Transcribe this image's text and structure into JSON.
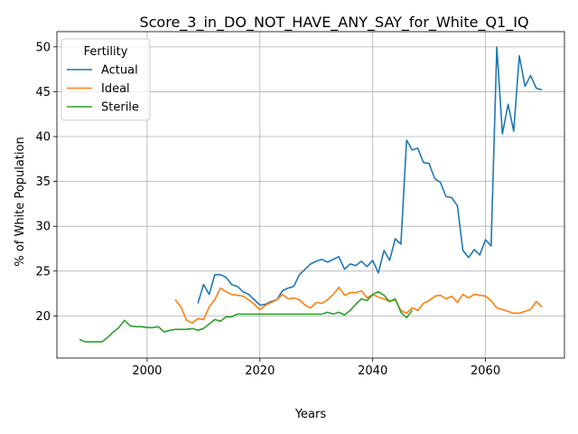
{
  "chart_data": {
    "type": "line",
    "title": "Score_3_in_DO_NOT_HAVE_ANY_SAY_for_White_Q1_IQ",
    "xlabel": "Years",
    "ylabel": "% of White Population",
    "xlim": [
      1984,
      2074
    ],
    "ylim": [
      15.3,
      51.7
    ],
    "xticks": [
      2000,
      2020,
      2040,
      2060
    ],
    "yticks": [
      20,
      25,
      30,
      35,
      40,
      45,
      50
    ],
    "grid": true,
    "legend": {
      "title": "Fertility",
      "placement": "top-left"
    },
    "series": [
      {
        "name": "Actual",
        "color": "#1f77b4",
        "x": [
          2009,
          2010,
          2011,
          2012,
          2013,
          2014,
          2015,
          2016,
          2017,
          2018,
          2019,
          2020,
          2021,
          2022,
          2023,
          2024,
          2025,
          2026,
          2027,
          2028,
          2029,
          2030,
          2031,
          2032,
          2033,
          2034,
          2035,
          2036,
          2037,
          2038,
          2039,
          2040,
          2041,
          2042,
          2043,
          2044,
          2045,
          2046,
          2047,
          2048,
          2049,
          2050,
          2051,
          2052,
          2053,
          2054,
          2055,
          2056,
          2057,
          2058,
          2059,
          2060,
          2061,
          2062,
          2063,
          2064,
          2065,
          2066,
          2067,
          2068,
          2069,
          2070
        ],
        "y": [
          21.4,
          23.5,
          22.4,
          24.6,
          24.6,
          24.3,
          23.5,
          23.3,
          22.7,
          22.4,
          21.8,
          21.2,
          21.3,
          21.6,
          21.8,
          22.8,
          23.1,
          23.3,
          24.6,
          25.2,
          25.8,
          26.1,
          26.3,
          26.0,
          26.3,
          26.6,
          25.2,
          25.8,
          25.6,
          26.1,
          25.5,
          26.2,
          24.8,
          27.3,
          26.2,
          28.6,
          28.0,
          39.6,
          38.5,
          38.7,
          37.1,
          37.0,
          35.3,
          34.9,
          33.3,
          33.2,
          32.3,
          27.3,
          26.5,
          27.4,
          26.8,
          28.5,
          27.8,
          50.0,
          40.3,
          43.6,
          40.6,
          49.0,
          45.6,
          46.8,
          45.4,
          45.2
        ]
      },
      {
        "name": "Ideal",
        "color": "#ff7f0e",
        "x": [
          2005,
          2006,
          2007,
          2008,
          2009,
          2010,
          2011,
          2012,
          2013,
          2014,
          2015,
          2016,
          2017,
          2018,
          2019,
          2020,
          2021,
          2022,
          2023,
          2024,
          2025,
          2026,
          2027,
          2028,
          2029,
          2030,
          2031,
          2032,
          2033,
          2034,
          2035,
          2036,
          2037,
          2038,
          2039,
          2040,
          2041,
          2042,
          2043,
          2044,
          2045,
          2046,
          2047,
          2048,
          2049,
          2050,
          2051,
          2052,
          2053,
          2054,
          2055,
          2056,
          2057,
          2058,
          2059,
          2060,
          2061,
          2062,
          2063,
          2064,
          2065,
          2066,
          2067,
          2068,
          2069,
          2070
        ],
        "y": [
          21.8,
          21.0,
          19.5,
          19.2,
          19.7,
          19.6,
          21.0,
          21.8,
          23.1,
          22.7,
          22.4,
          22.3,
          22.2,
          21.8,
          21.3,
          20.7,
          21.2,
          21.5,
          21.8,
          22.4,
          21.9,
          22.0,
          21.8,
          21.2,
          20.9,
          21.5,
          21.4,
          21.8,
          22.4,
          23.2,
          22.3,
          22.6,
          22.6,
          22.8,
          22.0,
          22.4,
          22.1,
          21.9,
          21.6,
          21.8,
          20.6,
          20.3,
          20.9,
          20.6,
          21.4,
          21.7,
          22.2,
          22.3,
          21.9,
          22.2,
          21.5,
          22.4,
          22.0,
          22.4,
          22.3,
          22.2,
          21.7,
          20.9,
          20.7,
          20.5,
          20.3,
          20.3,
          20.5,
          20.7,
          21.6,
          21.0
        ]
      },
      {
        "name": "Sterile",
        "color": "#2ca02c",
        "x": [
          1988,
          1989,
          1990,
          1991,
          1992,
          1993,
          1994,
          1995,
          1996,
          1997,
          1998,
          1999,
          2000,
          2001,
          2002,
          2003,
          2004,
          2005,
          2006,
          2007,
          2008,
          2009,
          2010,
          2011,
          2012,
          2013,
          2014,
          2015,
          2016,
          2017,
          2018,
          2019,
          2020,
          2021,
          2022,
          2023,
          2024,
          2025,
          2026,
          2027,
          2028,
          2029,
          2030,
          2031,
          2032,
          2033,
          2034,
          2035,
          2036,
          2037,
          2038,
          2039,
          2040,
          2041,
          2042,
          2043,
          2044,
          2045,
          2046,
          2047
        ],
        "y": [
          17.4,
          17.1,
          17.1,
          17.1,
          17.1,
          17.6,
          18.2,
          18.7,
          19.5,
          18.9,
          18.8,
          18.8,
          18.7,
          18.7,
          18.8,
          18.2,
          18.4,
          18.5,
          18.5,
          18.5,
          18.6,
          18.4,
          18.6,
          19.1,
          19.6,
          19.4,
          19.9,
          19.9,
          20.2,
          20.2,
          20.2,
          20.2,
          20.2,
          20.2,
          20.2,
          20.2,
          20.2,
          20.2,
          20.2,
          20.2,
          20.2,
          20.2,
          20.2,
          20.2,
          20.4,
          20.2,
          20.4,
          20.1,
          20.6,
          21.3,
          21.9,
          21.7,
          22.4,
          22.7,
          22.3,
          21.6,
          21.9,
          20.4,
          19.8,
          20.6
        ]
      }
    ]
  }
}
